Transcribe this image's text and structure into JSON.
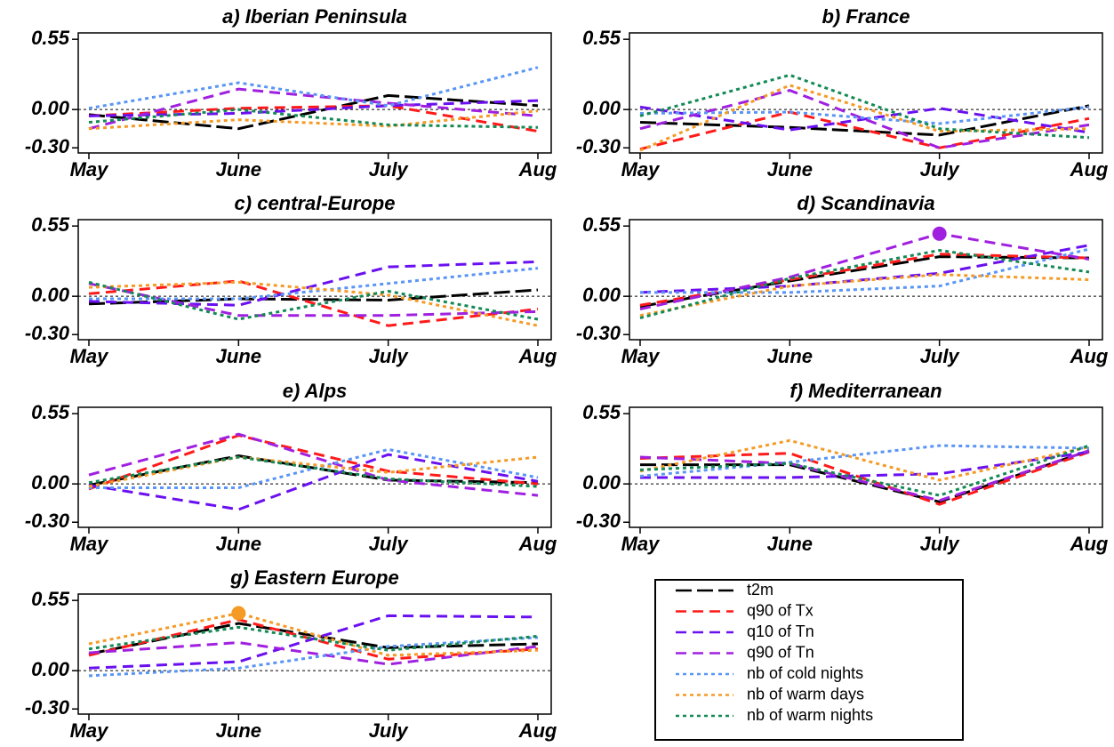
{
  "chart_data": [
    {
      "type": "line",
      "title": "a) Iberian Peninsula",
      "categories": [
        "May",
        "June",
        "July",
        "Aug"
      ],
      "ylim": [
        -0.34,
        0.6
      ],
      "yticks": [
        0.55,
        {
          "value": 0,
          "label": "0.00"
        },
        {
          "value": -0.3,
          "label": "-0.30"
        }
      ],
      "series": [
        {
          "name": "t2m",
          "color": "#000000",
          "style": "longdash",
          "values": [
            -0.04,
            -0.15,
            0.11,
            0.03
          ]
        },
        {
          "name": "q90 of Tx",
          "color": "#ff1a1a",
          "style": "dash",
          "values": [
            -0.05,
            0.01,
            0.03,
            -0.17
          ]
        },
        {
          "name": "q10 of Tn",
          "color": "#6a10f0",
          "style": "dash",
          "values": [
            -0.05,
            -0.03,
            0.03,
            0.07
          ]
        },
        {
          "name": "q90 of Tn",
          "color": "#a020e0",
          "style": "dash",
          "values": [
            -0.15,
            0.16,
            0.05,
            -0.05
          ]
        },
        {
          "name": "nb of cold nights",
          "color": "#5a95f5",
          "style": "dot",
          "values": [
            0.01,
            0.21,
            0.03,
            0.33
          ]
        },
        {
          "name": "nb of warm days",
          "color": "#f59a25",
          "style": "dot",
          "values": [
            -0.15,
            -0.08,
            -0.13,
            -0.01
          ]
        },
        {
          "name": "nb of warm nights",
          "color": "#138a55",
          "style": "dot",
          "values": [
            -0.1,
            0.0,
            -0.12,
            -0.14
          ]
        }
      ]
    },
    {
      "type": "line",
      "title": "b) France",
      "categories": [
        "May",
        "June",
        "July",
        "Aug"
      ],
      "ylim": [
        -0.34,
        0.6
      ],
      "yticks": [
        0.55,
        {
          "value": 0,
          "label": "0.00"
        },
        {
          "value": -0.3,
          "label": "-0.30"
        }
      ],
      "series": [
        {
          "name": "t2m",
          "color": "#000000",
          "style": "longdash",
          "values": [
            -0.1,
            -0.14,
            -0.2,
            0.03
          ]
        },
        {
          "name": "q90 of Tx",
          "color": "#ff1a1a",
          "style": "dash",
          "values": [
            -0.31,
            -0.02,
            -0.3,
            -0.07
          ]
        },
        {
          "name": "q10 of Tn",
          "color": "#6a10f0",
          "style": "dash",
          "values": [
            0.02,
            -0.16,
            0.01,
            -0.18
          ]
        },
        {
          "name": "q90 of Tn",
          "color": "#a020e0",
          "style": "dash",
          "values": [
            -0.15,
            0.15,
            -0.3,
            -0.12
          ]
        },
        {
          "name": "nb of cold nights",
          "color": "#5a95f5",
          "style": "dot",
          "values": [
            -0.03,
            -0.02,
            -0.11,
            0.02
          ]
        },
        {
          "name": "nb of warm days",
          "color": "#f59a25",
          "style": "dot",
          "values": [
            -0.32,
            0.19,
            -0.17,
            -0.15
          ]
        },
        {
          "name": "nb of warm nights",
          "color": "#138a55",
          "style": "dot",
          "values": [
            -0.05,
            0.27,
            -0.15,
            -0.22
          ]
        }
      ]
    },
    {
      "type": "line",
      "title": "c) central-Europe",
      "categories": [
        "May",
        "June",
        "July",
        "Aug"
      ],
      "ylim": [
        -0.34,
        0.6
      ],
      "yticks": [
        0.55,
        {
          "value": 0,
          "label": "0.00"
        },
        {
          "value": -0.3,
          "label": "-0.30"
        }
      ],
      "series": [
        {
          "name": "t2m",
          "color": "#000000",
          "style": "longdash",
          "values": [
            -0.06,
            -0.02,
            -0.03,
            0.05
          ]
        },
        {
          "name": "q90 of Tx",
          "color": "#ff1a1a",
          "style": "dash",
          "values": [
            0.02,
            0.12,
            -0.23,
            -0.1
          ]
        },
        {
          "name": "q10 of Tn",
          "color": "#6a10f0",
          "style": "dash",
          "values": [
            -0.04,
            -0.07,
            0.23,
            0.27
          ]
        },
        {
          "name": "q90 of Tn",
          "color": "#a020e0",
          "style": "dash",
          "values": [
            0.1,
            -0.15,
            -0.15,
            -0.12
          ]
        },
        {
          "name": "nb of cold nights",
          "color": "#5a95f5",
          "style": "dot",
          "values": [
            -0.02,
            -0.02,
            0.1,
            0.22
          ]
        },
        {
          "name": "nb of warm days",
          "color": "#f59a25",
          "style": "dot",
          "values": [
            0.07,
            0.11,
            0.01,
            -0.23
          ]
        },
        {
          "name": "nb of warm nights",
          "color": "#138a55",
          "style": "dot",
          "values": [
            0.11,
            -0.18,
            0.04,
            -0.18
          ]
        }
      ]
    },
    {
      "type": "line",
      "title": "d) Scandinavia",
      "categories": [
        "May",
        "June",
        "July",
        "Aug"
      ],
      "ylim": [
        -0.34,
        0.6
      ],
      "yticks": [
        0.55,
        {
          "value": 0,
          "label": "0.00"
        },
        {
          "value": -0.3,
          "label": "-0.30"
        }
      ],
      "highlight": {
        "series": 3,
        "index": 2
      },
      "series": [
        {
          "name": "t2m",
          "color": "#000000",
          "style": "longdash",
          "values": [
            -0.08,
            0.12,
            0.31,
            0.3
          ]
        },
        {
          "name": "q90 of Tx",
          "color": "#ff1a1a",
          "style": "dash",
          "values": [
            -0.07,
            0.13,
            0.33,
            0.3
          ]
        },
        {
          "name": "q10 of Tn",
          "color": "#6a10f0",
          "style": "dash",
          "values": [
            0.03,
            0.08,
            0.18,
            0.4
          ]
        },
        {
          "name": "q90 of Tn",
          "color": "#a020e0",
          "style": "dash",
          "values": [
            -0.1,
            0.15,
            0.49,
            0.29
          ]
        },
        {
          "name": "nb of cold nights",
          "color": "#5a95f5",
          "style": "dot",
          "values": [
            0.03,
            0.03,
            0.08,
            0.37
          ]
        },
        {
          "name": "nb of warm days",
          "color": "#f59a25",
          "style": "dot",
          "values": [
            -0.15,
            0.08,
            0.17,
            0.13
          ]
        },
        {
          "name": "nb of warm nights",
          "color": "#138a55",
          "style": "dot",
          "values": [
            -0.17,
            0.14,
            0.36,
            0.19
          ]
        }
      ]
    },
    {
      "type": "line",
      "title": "e) Alps",
      "categories": [
        "May",
        "June",
        "July",
        "Aug"
      ],
      "ylim": [
        -0.34,
        0.6
      ],
      "yticks": [
        0.55,
        {
          "value": 0,
          "label": "0.00"
        },
        {
          "value": -0.3,
          "label": "-0.30"
        }
      ],
      "series": [
        {
          "name": "t2m",
          "color": "#000000",
          "style": "longdash",
          "values": [
            -0.01,
            0.22,
            0.03,
            0.01
          ]
        },
        {
          "name": "q90 of Tx",
          "color": "#ff1a1a",
          "style": "dash",
          "values": [
            -0.04,
            0.38,
            0.1,
            0.0
          ]
        },
        {
          "name": "q10 of Tn",
          "color": "#6a10f0",
          "style": "dash",
          "values": [
            -0.01,
            -0.2,
            0.23,
            0.02
          ]
        },
        {
          "name": "q90 of Tn",
          "color": "#a020e0",
          "style": "dash",
          "values": [
            0.07,
            0.39,
            0.03,
            -0.09
          ]
        },
        {
          "name": "nb of cold nights",
          "color": "#5a95f5",
          "style": "dot",
          "values": [
            -0.03,
            -0.03,
            0.27,
            0.05
          ]
        },
        {
          "name": "nb of warm days",
          "color": "#f59a25",
          "style": "dot",
          "values": [
            -0.02,
            0.21,
            0.09,
            0.21
          ]
        },
        {
          "name": "nb of warm nights",
          "color": "#138a55",
          "style": "dot",
          "values": [
            0.01,
            0.21,
            0.04,
            -0.02
          ]
        }
      ]
    },
    {
      "type": "line",
      "title": "f) Mediterranean",
      "categories": [
        "May",
        "June",
        "July",
        "Aug"
      ],
      "ylim": [
        -0.34,
        0.6
      ],
      "yticks": [
        0.55,
        {
          "value": 0,
          "label": "0.00"
        },
        {
          "value": -0.3,
          "label": "-0.30"
        }
      ],
      "series": [
        {
          "name": "t2m",
          "color": "#000000",
          "style": "longdash",
          "values": [
            0.15,
            0.15,
            -0.14,
            0.26
          ]
        },
        {
          "name": "q90 of Tx",
          "color": "#ff1a1a",
          "style": "dash",
          "values": [
            0.2,
            0.24,
            -0.16,
            0.25
          ]
        },
        {
          "name": "q10 of Tn",
          "color": "#6a10f0",
          "style": "dash",
          "values": [
            0.05,
            0.05,
            0.08,
            0.25
          ]
        },
        {
          "name": "q90 of Tn",
          "color": "#a020e0",
          "style": "dash",
          "values": [
            0.21,
            0.16,
            -0.13,
            0.26
          ]
        },
        {
          "name": "nb of cold nights",
          "color": "#5a95f5",
          "style": "dot",
          "values": [
            0.06,
            0.17,
            0.3,
            0.28
          ]
        },
        {
          "name": "nb of warm days",
          "color": "#f59a25",
          "style": "dot",
          "values": [
            0.1,
            0.34,
            0.03,
            0.29
          ]
        },
        {
          "name": "nb of warm nights",
          "color": "#138a55",
          "style": "dot",
          "values": [
            0.11,
            0.16,
            -0.09,
            0.3
          ]
        }
      ]
    },
    {
      "type": "line",
      "title": "g) Eastern Europe",
      "categories": [
        "May",
        "June",
        "July",
        "Aug"
      ],
      "ylim": [
        -0.34,
        0.6
      ],
      "yticks": [
        0.55,
        {
          "value": 0,
          "label": "0.00"
        },
        {
          "value": -0.3,
          "label": "-0.30"
        }
      ],
      "highlight": {
        "series": 5,
        "index": 1
      },
      "series": [
        {
          "name": "t2m",
          "color": "#000000",
          "style": "longdash",
          "values": [
            0.13,
            0.37,
            0.18,
            0.21
          ]
        },
        {
          "name": "q90 of Tx",
          "color": "#ff1a1a",
          "style": "dash",
          "values": [
            0.12,
            0.4,
            0.09,
            0.17
          ]
        },
        {
          "name": "q10 of Tn",
          "color": "#6a10f0",
          "style": "dash",
          "values": [
            0.02,
            0.07,
            0.43,
            0.42
          ]
        },
        {
          "name": "q90 of Tn",
          "color": "#a020e0",
          "style": "dash",
          "values": [
            0.14,
            0.22,
            0.05,
            0.19
          ]
        },
        {
          "name": "nb of cold nights",
          "color": "#5a95f5",
          "style": "dot",
          "values": [
            -0.04,
            0.02,
            0.19,
            0.26
          ]
        },
        {
          "name": "nb of warm days",
          "color": "#f59a25",
          "style": "dot",
          "values": [
            0.21,
            0.45,
            0.12,
            0.16
          ]
        },
        {
          "name": "nb of warm nights",
          "color": "#138a55",
          "style": "dot",
          "values": [
            0.17,
            0.34,
            0.16,
            0.27
          ]
        }
      ]
    }
  ]
}
